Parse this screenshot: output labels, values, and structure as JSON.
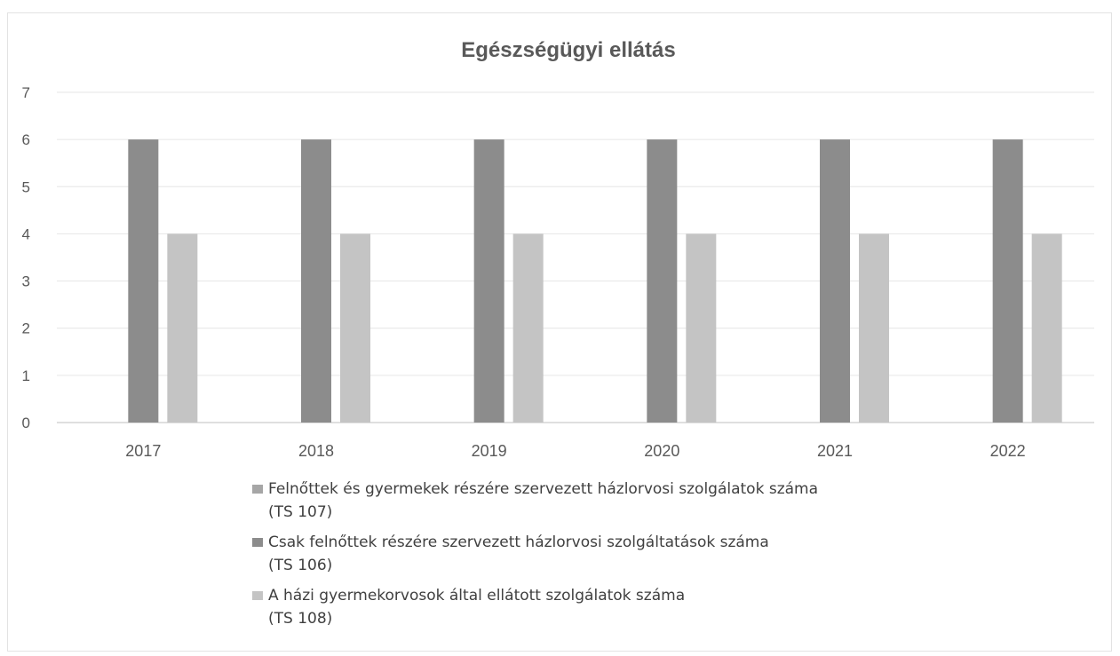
{
  "chart_data": {
    "type": "bar",
    "title": "Egészségügyi ellátás",
    "categories": [
      "2017",
      "2018",
      "2019",
      "2020",
      "2021",
      "2022"
    ],
    "ylim": [
      0,
      7
    ],
    "yticks": [
      "0",
      "1",
      "2",
      "3",
      "4",
      "5",
      "6",
      "7"
    ],
    "grid": true,
    "legend_position": "bottom",
    "series": [
      {
        "name": "Felnőttek és gyermekek részére szervezett házlorvosi szolgálatok száma",
        "code": "(TS 107)",
        "values": [
          0,
          0,
          0,
          0,
          0,
          0
        ],
        "color": "#a6a6a6"
      },
      {
        "name": "Csak felnőttek részére szervezett házlorvosi szolgáltatások száma",
        "code": "(TS 106)",
        "values": [
          6,
          6,
          6,
          6,
          6,
          6
        ],
        "color": "#8c8c8c"
      },
      {
        "name": "A házi gyermekorvosok által ellátott szolgálatok száma",
        "code": "(TS 108)",
        "values": [
          4,
          4,
          4,
          4,
          4,
          4
        ],
        "color": "#c4c4c4"
      }
    ]
  }
}
